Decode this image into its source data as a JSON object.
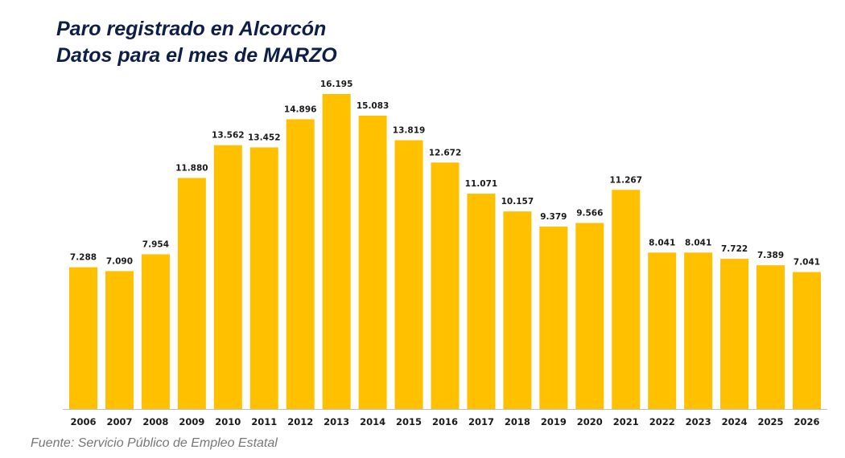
{
  "chart_data": {
    "type": "bar",
    "title": "Paro registrado en Alcorcón",
    "subtitle": "Datos para el mes de MARZO",
    "source": "Fuente: Servicio Público de Empleo Estatal",
    "categories": [
      "2006",
      "2007",
      "2008",
      "2009",
      "2010",
      "2011",
      "2012",
      "2013",
      "2014",
      "2015",
      "2016",
      "2017",
      "2018",
      "2019",
      "2020",
      "2021",
      "2022",
      "2023",
      "2024",
      "2025",
      "2026"
    ],
    "values": [
      7288,
      7090,
      7954,
      11880,
      13562,
      13452,
      14896,
      16195,
      15083,
      13819,
      12672,
      11071,
      10157,
      9379,
      9566,
      11267,
      8041,
      8041,
      7722,
      7389,
      7041
    ],
    "data_labels": [
      "7.288",
      "7.090",
      "7.954",
      "11.880",
      "13.562",
      "13.452",
      "14.896",
      "16.195",
      "15.083",
      "13.819",
      "12.672",
      "11.071",
      "10.157",
      "9.379",
      "9.566",
      "11.267",
      "8.041",
      "8.041",
      "7.722",
      "7.389",
      "7.041"
    ],
    "ylim": [
      0,
      16195
    ],
    "grid": false,
    "legend": "none",
    "colors": {
      "bar": "#ffc000",
      "title": "#0e1f47",
      "axis": "#bfbfbf"
    }
  }
}
